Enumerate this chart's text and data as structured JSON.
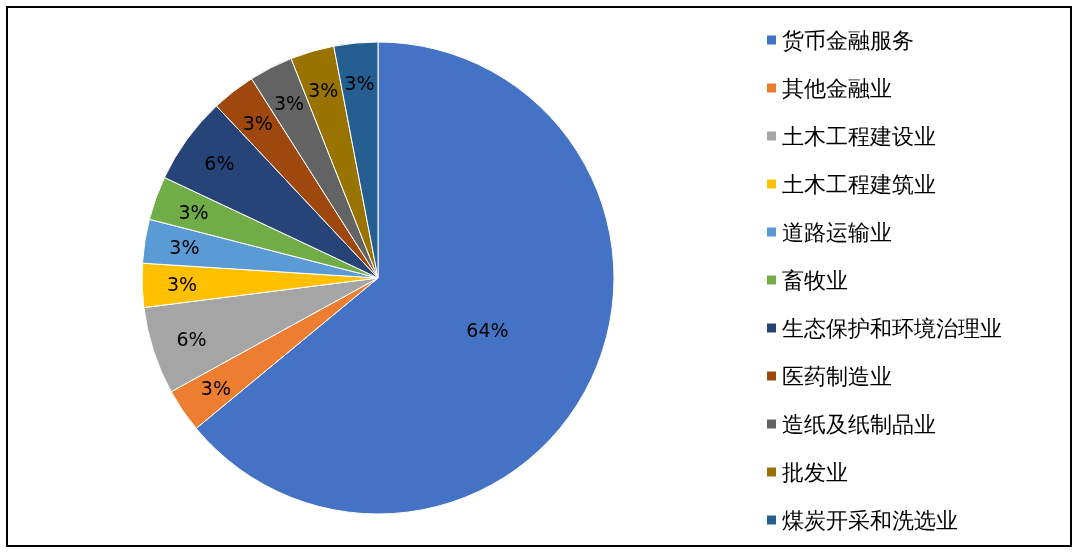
{
  "chart_data": {
    "type": "pie",
    "categories": [
      "货币金融服务",
      "其他金融业",
      "土木工程建设业",
      "土木工程建筑业",
      "道路运输业",
      "畜牧业",
      "生态保护和环境治理业",
      "医药制造业",
      "造纸及纸制品业",
      "批发业",
      "煤炭开采和洗选业"
    ],
    "values": [
      64,
      3,
      6,
      3,
      3,
      3,
      6,
      3,
      3,
      3,
      3
    ],
    "colors": [
      "#4472c4",
      "#ed7d31",
      "#a5a5a5",
      "#ffc000",
      "#5b9bd5",
      "#70ad47",
      "#264478",
      "#9e480e",
      "#636363",
      "#997300",
      "#255e91"
    ],
    "value_labels": [
      "64%",
      "3%",
      "6%",
      "3%",
      "3%",
      "3%",
      "6%",
      "3%",
      "3%",
      "3%",
      "3%"
    ],
    "legend": "right"
  }
}
